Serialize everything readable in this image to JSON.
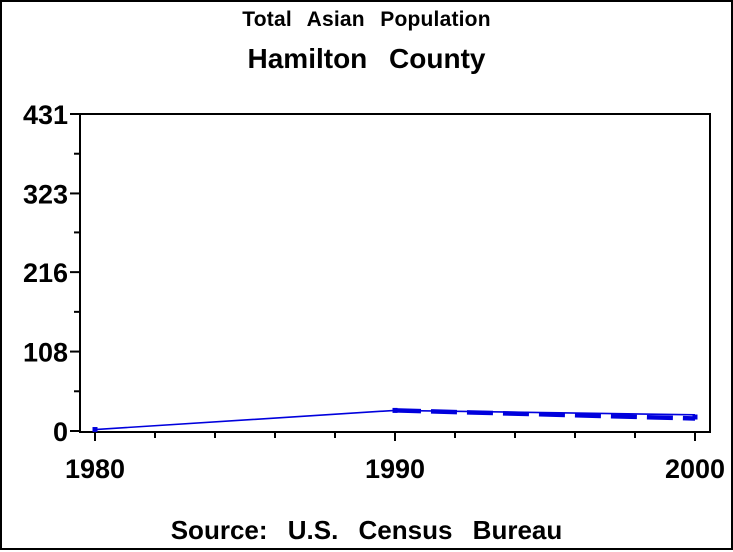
{
  "header": {
    "title": "Total Asian Population",
    "subtitle": "Hamilton County"
  },
  "footer": {
    "source": "Source: U.S. Census Bureau"
  },
  "colors": {
    "line": "#0000dd",
    "axis": "#000000",
    "background": "#ffffff",
    "border": "#000000"
  },
  "chart_data": {
    "type": "line",
    "title": "Total Asian Population",
    "subtitle": "Hamilton County",
    "source": "Source: U.S. Census Bureau",
    "xlabel": "",
    "ylabel": "",
    "grid": false,
    "legend": "none",
    "xlim": [
      1980,
      2000
    ],
    "ylim": [
      0,
      431
    ],
    "x_major_ticks": [
      1980,
      1990,
      2000
    ],
    "x_minor_step_years": 2,
    "y_major_ticks": [
      0,
      108,
      216,
      323,
      431
    ],
    "y_minor_ticks": [
      54,
      162,
      270,
      377
    ],
    "series": [
      {
        "name": "population-line",
        "style": "thin-solid",
        "points": [
          [
            1980,
            2
          ],
          [
            1990,
            28
          ],
          [
            2000,
            22
          ]
        ]
      },
      {
        "name": "population-line-thick",
        "style": "thick-dashed",
        "points": [
          [
            1990,
            28
          ],
          [
            2000,
            17
          ]
        ]
      }
    ],
    "markers": [
      [
        1980,
        2
      ],
      [
        1990,
        28
      ],
      [
        2000,
        19
      ]
    ]
  }
}
